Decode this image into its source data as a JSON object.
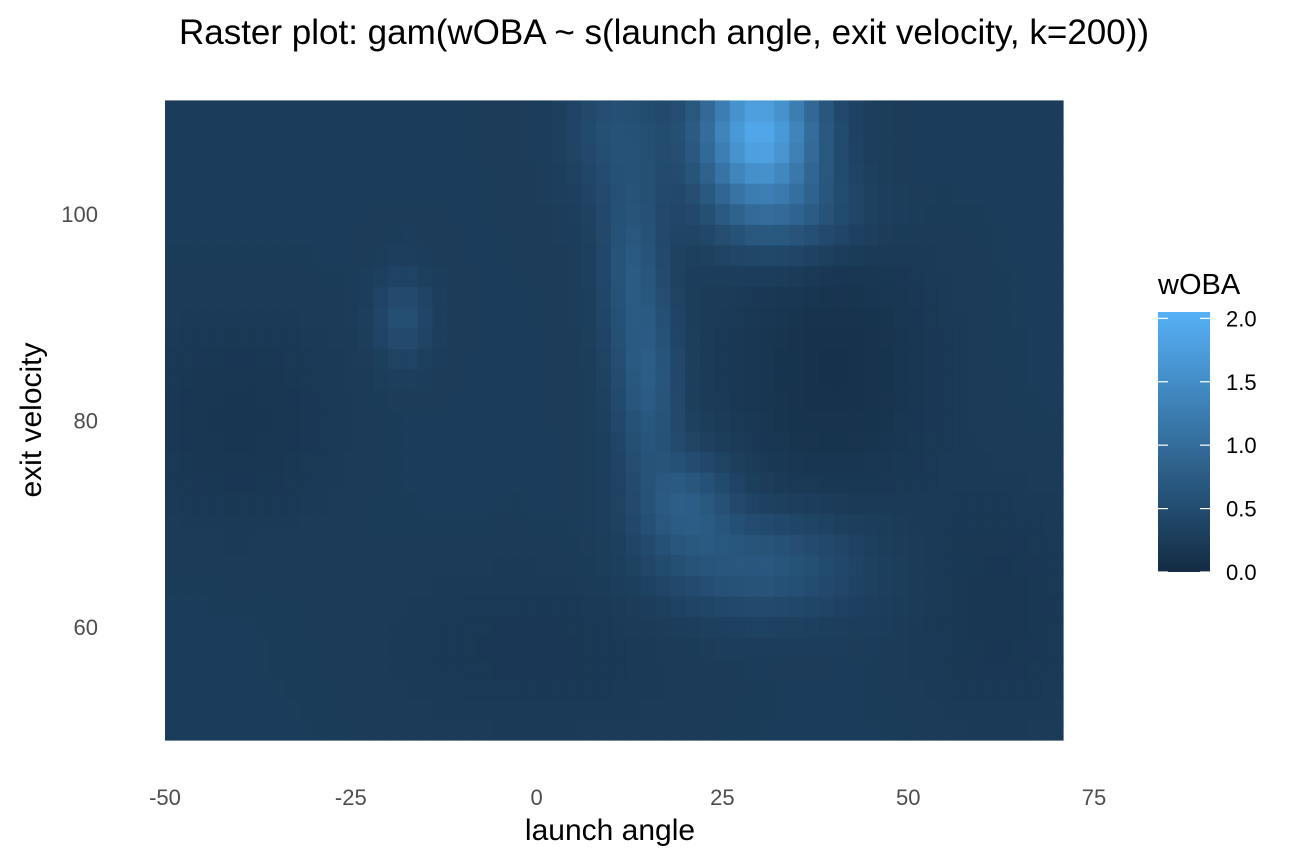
{
  "chart_data": {
    "type": "heatmap",
    "title": "Raster plot: gam(wOBA ~ s(launch angle, exit velocity, k=200))",
    "xlabel": "launch angle",
    "ylabel": "exit velocity",
    "xlim": [
      -50,
      71
    ],
    "ylim": [
      49,
      111
    ],
    "x_ticks": [
      {
        "value": -50,
        "label": "-50"
      },
      {
        "value": -25,
        "label": "-25"
      },
      {
        "value": 0,
        "label": "0"
      },
      {
        "value": 25,
        "label": "25"
      },
      {
        "value": 50,
        "label": "50"
      },
      {
        "value": 75,
        "label": "75"
      }
    ],
    "y_ticks": [
      {
        "value": 60,
        "label": "60"
      },
      {
        "value": 80,
        "label": "80"
      },
      {
        "value": 100,
        "label": "100"
      }
    ],
    "grid": false,
    "legend": {
      "title": "wOBA",
      "placement": "right",
      "range": [
        0.0,
        2.05
      ],
      "ticks": [
        {
          "value": 0.0,
          "label": "0.0"
        },
        {
          "value": 0.5,
          "label": "0.5"
        },
        {
          "value": 1.0,
          "label": "1.0"
        },
        {
          "value": 1.5,
          "label": "1.5"
        },
        {
          "value": 2.0,
          "label": "2.0"
        }
      ],
      "low_color": "#132b43",
      "high_color": "#56b1f7"
    },
    "cell_size": {
      "launch_angle": 2,
      "exit_velocity": 2
    },
    "surface": {
      "base": 0.26,
      "components": [
        {
          "center": [
            30,
            108
          ],
          "spread": [
            5.5,
            5.0
          ],
          "amplitude": 1.65
        },
        {
          "center": [
            34,
            100
          ],
          "spread": [
            7.0,
            3.0
          ],
          "amplitude": 0.35
        },
        {
          "center": [
            11,
            108
          ],
          "spread": [
            4.5,
            5.0
          ],
          "amplitude": 0.3
        },
        {
          "center": [
            13,
            95
          ],
          "spread": [
            3.0,
            6.0
          ],
          "amplitude": 0.4
        },
        {
          "center": [
            15,
            83
          ],
          "spread": [
            3.0,
            6.0
          ],
          "amplitude": 0.45
        },
        {
          "center": [
            20,
            72
          ],
          "spread": [
            4.5,
            3.5
          ],
          "amplitude": 0.45
        },
        {
          "center": [
            30,
            66
          ],
          "spread": [
            9.0,
            3.5
          ],
          "amplitude": 0.42
        },
        {
          "center": [
            -18,
            90
          ],
          "spread": [
            2.5,
            3.0
          ],
          "amplitude": 0.3
        },
        {
          "center": [
            40,
            85
          ],
          "spread": [
            9.0,
            9.0
          ],
          "amplitude": -0.17
        },
        {
          "center": [
            -40,
            80
          ],
          "spread": [
            9.0,
            7.0
          ],
          "amplitude": -0.1
        },
        {
          "center": [
            0,
            58
          ],
          "spread": [
            15.0,
            6.0
          ],
          "amplitude": -0.06
        },
        {
          "center": [
            62,
            62
          ],
          "spread": [
            8.0,
            8.0
          ],
          "amplitude": -0.08
        }
      ]
    }
  }
}
